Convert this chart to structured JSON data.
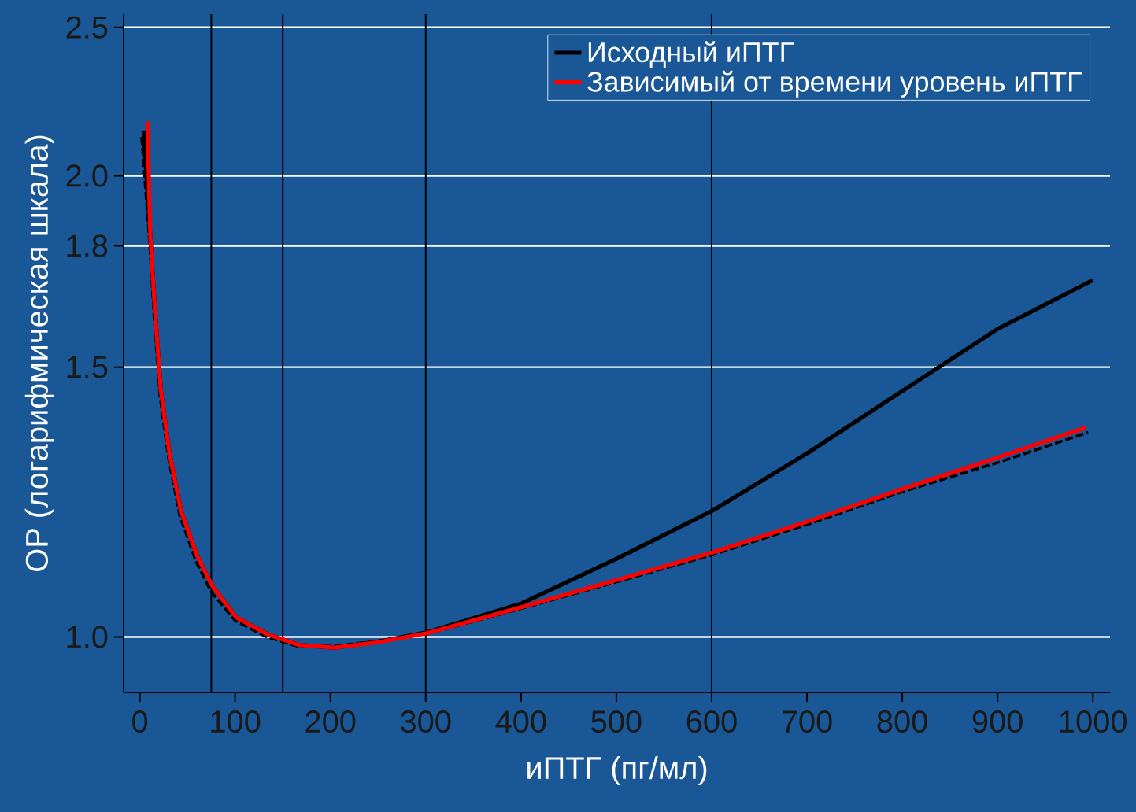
{
  "chart_data": {
    "type": "line",
    "xlabel": "иПТГ (пг/мл)",
    "ylabel": "ОР (логарифмическая шкала)",
    "xlim": [
      -17,
      1018
    ],
    "ylim": [
      0.92,
      2.55
    ],
    "log": "y",
    "grid": "y",
    "legend": "top right",
    "marker": "none",
    "xticks": [
      0,
      100,
      200,
      300,
      400,
      500,
      600,
      700,
      800,
      900,
      1000
    ],
    "yticks": [
      {
        "value": 1,
        "label": "1.0"
      },
      {
        "value": 1.5,
        "label": "1.5"
      },
      {
        "value": 1.8,
        "label": "1.8"
      },
      {
        "value": 2,
        "label": "2.0"
      },
      {
        "value": 2.5,
        "label": "2.5"
      }
    ],
    "ref_lines": [
      {
        "axis": "x",
        "value": 75,
        "color": "#000000"
      },
      {
        "axis": "x",
        "value": 150,
        "color": "#000000"
      },
      {
        "axis": "x",
        "value": 300,
        "color": "#000000"
      },
      {
        "axis": "x",
        "value": 600,
        "color": "#000000"
      }
    ],
    "series": [
      {
        "name": "Исходный иПТГ",
        "color": "#000000",
        "line_style": "solid",
        "x": [
          4,
          11,
          16,
          22,
          31,
          43,
          60,
          76,
          101,
          134,
          167,
          204,
          250,
          302,
          401,
          502,
          602,
          702,
          802,
          901,
          1000
        ],
        "values": [
          2.14,
          1.83,
          1.63,
          1.45,
          1.32,
          1.21,
          1.13,
          1.08,
          1.03,
          1.004,
          0.988,
          0.984,
          0.993,
          1.007,
          1.052,
          1.126,
          1.21,
          1.32,
          1.45,
          1.59,
          1.71
        ]
      },
      {
        "color": "#000000",
        "line_style": "dashed",
        "x": [
          2,
          10,
          15,
          21,
          30,
          42,
          59,
          75,
          100,
          133,
          166,
          204,
          250,
          302,
          401,
          502,
          602,
          702,
          802,
          901,
          995
        ],
        "values": [
          2.12,
          1.82,
          1.62,
          1.44,
          1.31,
          1.2,
          1.12,
          1.07,
          1.025,
          1.0,
          0.986,
          0.986,
          0.994,
          1.005,
          1.044,
          1.087,
          1.132,
          1.185,
          1.245,
          1.3,
          1.36
        ]
      },
      {
        "name": "Зависимый от времени уровень иПТГ",
        "color": "#ff0000",
        "line_style": "solid",
        "x": [
          8,
          11,
          16,
          22,
          31,
          43,
          60,
          76,
          101,
          134,
          167,
          204,
          250,
          302,
          401,
          502,
          602,
          702,
          802,
          901,
          993
        ],
        "values": [
          2.17,
          1.83,
          1.63,
          1.45,
          1.32,
          1.21,
          1.13,
          1.08,
          1.03,
          1.004,
          0.988,
          0.984,
          0.992,
          1.006,
          1.046,
          1.09,
          1.136,
          1.19,
          1.25,
          1.31,
          1.37
        ]
      }
    ]
  }
}
